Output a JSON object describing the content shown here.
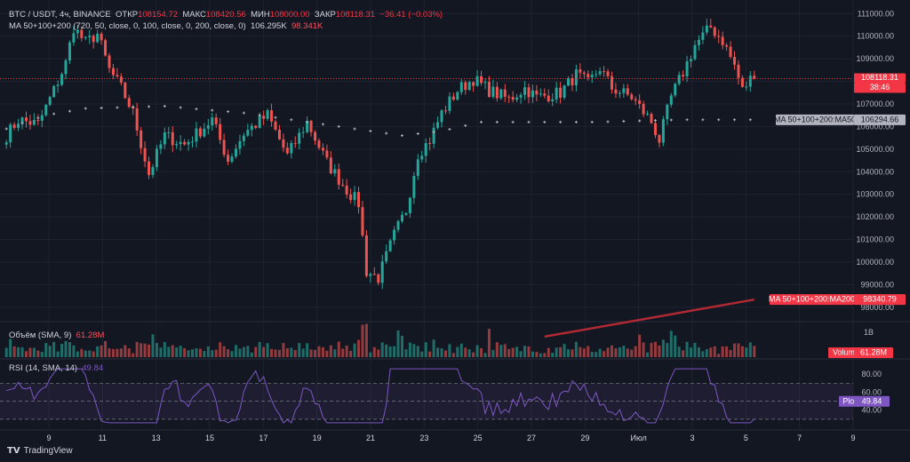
{
  "header": {
    "symbol": "BTC / USDT, 4ч, BINANCE",
    "open_label": "ОТКР",
    "open": "108154.72",
    "high_label": "МАКС",
    "high": "108420.56",
    "low_label": "МИН",
    "low": "108000.00",
    "close_label": "ЗАКР",
    "close": "108118.31",
    "change": "−36.41 (−0.03%)",
    "ma_label": "MA 50+100+200 (720, 50, close, 0, 100, close, 0, 200, close, 0)",
    "ma_v1": "106.295K",
    "ma_v2": "98.341K"
  },
  "volume_legend": {
    "label": "Объём (SMA, 9)",
    "value": "61.28M"
  },
  "rsi_legend": {
    "label": "RSI (14, SMA, 14)",
    "value": "49.84"
  },
  "price_axis": [
    "111000.00",
    "110000.00",
    "109000.00",
    "108000.00",
    "107000.00",
    "106000.00",
    "105000.00",
    "104000.00",
    "103000.00",
    "102000.00",
    "101000.00",
    "100000.00",
    "99000.00",
    "98000.00"
  ],
  "price_labels": {
    "last": "108118.31",
    "countdown": "38:46",
    "ma50_name": "MA 50+100+200:MA50",
    "ma50_value": "106294.66",
    "ma200_name": "MA 50+100+200:MA200",
    "ma200_value": "98340.79"
  },
  "volume_axis": {
    "tick": "1B",
    "name": "Volume",
    "value": "61.28M"
  },
  "rsi_axis": {
    "ticks": [
      "80.00",
      "60.00",
      "40.00"
    ],
    "name": "Plot",
    "value": "49.84"
  },
  "time_axis": [
    "9",
    "11",
    "13",
    "15",
    "17",
    "19",
    "21",
    "23",
    "25",
    "27",
    "29",
    "Июл",
    "3",
    "5",
    "7",
    "9"
  ],
  "branding": {
    "name": "TradingView"
  },
  "colors": {
    "up": "#26a69a",
    "down": "#ef5350",
    "bg": "#131722",
    "grid": "#1f2330",
    "ma50": "#b2b5be",
    "ma200": "#b22833",
    "rsi": "#7e57c2"
  },
  "chart_data": {
    "type": "candlestick",
    "symbol": "BTC / USDT",
    "interval": "4ч",
    "ylim": [
      97600,
      111600
    ],
    "anchors": [
      [
        0,
        105600
      ],
      [
        3,
        106300
      ],
      [
        8,
        106100
      ],
      [
        12,
        107600
      ],
      [
        15,
        108800
      ],
      [
        17,
        110400
      ],
      [
        20,
        109700
      ],
      [
        23,
        110100
      ],
      [
        26,
        108500
      ],
      [
        29,
        107700
      ],
      [
        32,
        106600
      ],
      [
        36,
        103900
      ],
      [
        40,
        105600
      ],
      [
        45,
        105200
      ],
      [
        52,
        106300
      ],
      [
        56,
        104500
      ],
      [
        60,
        105700
      ],
      [
        66,
        106500
      ],
      [
        71,
        104700
      ],
      [
        76,
        106200
      ],
      [
        81,
        104400
      ],
      [
        86,
        103200
      ],
      [
        89,
        102600
      ],
      [
        91,
        99600
      ],
      [
        94,
        99300
      ],
      [
        98,
        101200
      ],
      [
        101,
        102300
      ],
      [
        104,
        104800
      ],
      [
        107,
        105400
      ],
      [
        110,
        106600
      ],
      [
        114,
        107600
      ],
      [
        118,
        108100
      ],
      [
        122,
        107600
      ],
      [
        127,
        107200
      ],
      [
        131,
        107700
      ],
      [
        134,
        107300
      ],
      [
        140,
        107500
      ],
      [
        144,
        108300
      ],
      [
        147,
        107900
      ],
      [
        150,
        108600
      ],
      [
        153,
        107700
      ],
      [
        158,
        107300
      ],
      [
        163,
        106200
      ],
      [
        165,
        105400
      ],
      [
        168,
        107300
      ],
      [
        171,
        108400
      ],
      [
        174,
        109600
      ],
      [
        178,
        110400
      ],
      [
        181,
        109800
      ],
      [
        184,
        108700
      ],
      [
        186,
        107600
      ],
      [
        188,
        108100
      ],
      [
        189,
        108118
      ]
    ],
    "ma50": [
      [
        0,
        105900
      ],
      [
        10,
        106500
      ],
      [
        20,
        106800
      ],
      [
        40,
        106900
      ],
      [
        60,
        106600
      ],
      [
        80,
        106100
      ],
      [
        100,
        105600
      ],
      [
        110,
        105800
      ],
      [
        120,
        106200
      ],
      [
        150,
        106200
      ],
      [
        170,
        106300
      ],
      [
        189,
        106300
      ]
    ],
    "ma200_segment": [
      [
        136,
        96700
      ],
      [
        189,
        98340
      ]
    ],
    "rsi_range": [
      20,
      95
    ],
    "rsi_levels": [
      70,
      50,
      30
    ],
    "last_close": 108118.31
  }
}
